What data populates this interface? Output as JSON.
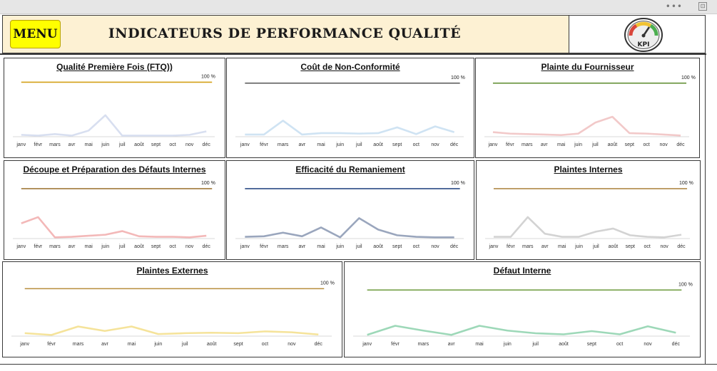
{
  "window": {
    "menu_dots": "•••",
    "pin_icon": "⊡"
  },
  "header": {
    "menu_label": "MENU",
    "title": "INDICATEURS DE PERFORMANCE QUALITÉ",
    "logo_text": "KPI"
  },
  "months": [
    "janv",
    "févr",
    "mars",
    "avr",
    "mai",
    "juin",
    "juil",
    "août",
    "sept",
    "oct",
    "nov",
    "déc"
  ],
  "target_label": "100 %",
  "chart_data": [
    {
      "type": "line",
      "title": "Qualité Première Fois (FTQ))",
      "categories": [
        "janv",
        "févr",
        "mars",
        "avr",
        "mai",
        "juin",
        "juil",
        "août",
        "sept",
        "oct",
        "nov",
        "déc"
      ],
      "series": [
        {
          "values": [
            0.3,
            0.1,
            0.5,
            0.1,
            1.4,
            5.4,
            0.1,
            0.1,
            0.1,
            0.1,
            0.3,
            1.2
          ]
        }
      ],
      "target": 14,
      "ylim": [
        0,
        15
      ],
      "colors": {
        "line": "#d8dff0",
        "target": "#d4a017"
      }
    },
    {
      "type": "line",
      "title": "Coût de Non-Conformité",
      "categories": [
        "janv",
        "févr",
        "mars",
        "avr",
        "mai",
        "juin",
        "juil",
        "août",
        "sept",
        "oct",
        "nov",
        "déc"
      ],
      "series": [
        {
          "values": [
            0.3,
            0.3,
            3.2,
            0.3,
            0.6,
            0.6,
            0.5,
            0.6,
            1.8,
            0.4,
            2.0,
            0.8
          ]
        }
      ],
      "target": 11,
      "ylim": [
        0,
        12
      ],
      "colors": {
        "line": "#cfe3f3",
        "target": "#555555"
      }
    },
    {
      "type": "line",
      "title": "Plainte du Fournisseur",
      "categories": [
        "janv",
        "févr",
        "mars",
        "avr",
        "mai",
        "juin",
        "juil",
        "août",
        "sept",
        "oct",
        "nov",
        "déc"
      ],
      "series": [
        {
          "values": [
            0.8,
            0.5,
            0.4,
            0.3,
            0.2,
            0.5,
            2.8,
            4.0,
            0.6,
            0.5,
            0.3,
            0.1
          ]
        }
      ],
      "target": 11,
      "ylim": [
        0,
        12
      ],
      "colors": {
        "line": "#f2c9c9",
        "target": "#5b8a2b"
      }
    },
    {
      "type": "line",
      "title": "Découpe et Préparation des Défauts Internes",
      "categories": [
        "janv",
        "févr",
        "mars",
        "avr",
        "mai",
        "juin",
        "juil",
        "août",
        "sept",
        "oct",
        "nov",
        "déc"
      ],
      "series": [
        {
          "values": [
            2.8,
            4.0,
            0.1,
            0.2,
            0.4,
            0.6,
            1.3,
            0.3,
            0.2,
            0.2,
            0.1,
            0.4
          ]
        }
      ],
      "target": 9.5,
      "ylim": [
        0,
        11
      ],
      "colors": {
        "line": "#f3b8b8",
        "target": "#a0793a"
      }
    },
    {
      "type": "line",
      "title": "Efficacité du Remaniement",
      "categories": [
        "janv",
        "févr",
        "mars",
        "avr",
        "mai",
        "juin",
        "juil",
        "août",
        "sept",
        "oct",
        "nov",
        "déc"
      ],
      "series": [
        {
          "values": [
            0.2,
            0.3,
            1.0,
            0.3,
            2.0,
            0.1,
            3.8,
            1.6,
            0.5,
            0.2,
            0.1,
            0.1
          ]
        }
      ],
      "target": 9.5,
      "ylim": [
        0,
        11
      ],
      "colors": {
        "line": "#9aa6bd",
        "target": "#2c4c86"
      }
    },
    {
      "type": "line",
      "title": "Plaintes Internes",
      "categories": [
        "janv",
        "févr",
        "mars",
        "avr",
        "mai",
        "juin",
        "juil",
        "août",
        "sept",
        "oct",
        "nov",
        "déc"
      ],
      "series": [
        {
          "values": [
            0.2,
            0.2,
            4.0,
            0.8,
            0.2,
            0.2,
            1.2,
            1.8,
            0.5,
            0.2,
            0.1,
            0.6
          ]
        }
      ],
      "target": 9.5,
      "ylim": [
        0,
        11
      ],
      "colors": {
        "line": "#d3d3d3",
        "target": "#b08a48"
      }
    },
    {
      "type": "line",
      "title": "Plaintes Externes",
      "categories": [
        "janv",
        "févr",
        "mars",
        "avr",
        "mai",
        "juin",
        "juil",
        "août",
        "sept",
        "oct",
        "nov",
        "déc"
      ],
      "series": [
        {
          "values": [
            0.5,
            0.1,
            2.0,
            1.0,
            2.0,
            0.3,
            0.5,
            0.6,
            0.5,
            0.9,
            0.7,
            0.2
          ]
        }
      ],
      "target": 10.5,
      "ylim": [
        0,
        12
      ],
      "colors": {
        "line": "#f5e39a",
        "target": "#b88d3c"
      }
    },
    {
      "type": "line",
      "title": "Défaut Interne",
      "categories": [
        "janv",
        "févr",
        "mars",
        "avr",
        "mai",
        "juin",
        "juil",
        "août",
        "sept",
        "oct",
        "nov",
        "déc"
      ],
      "series": [
        {
          "values": [
            0.1,
            1.8,
            0.9,
            0.1,
            1.8,
            0.9,
            0.4,
            0.2,
            0.8,
            0.2,
            1.7,
            0.5
          ]
        }
      ],
      "target": 8.5,
      "ylim": [
        0,
        10
      ],
      "colors": {
        "line": "#9dd8b8",
        "target": "#6c9a3c"
      }
    }
  ]
}
